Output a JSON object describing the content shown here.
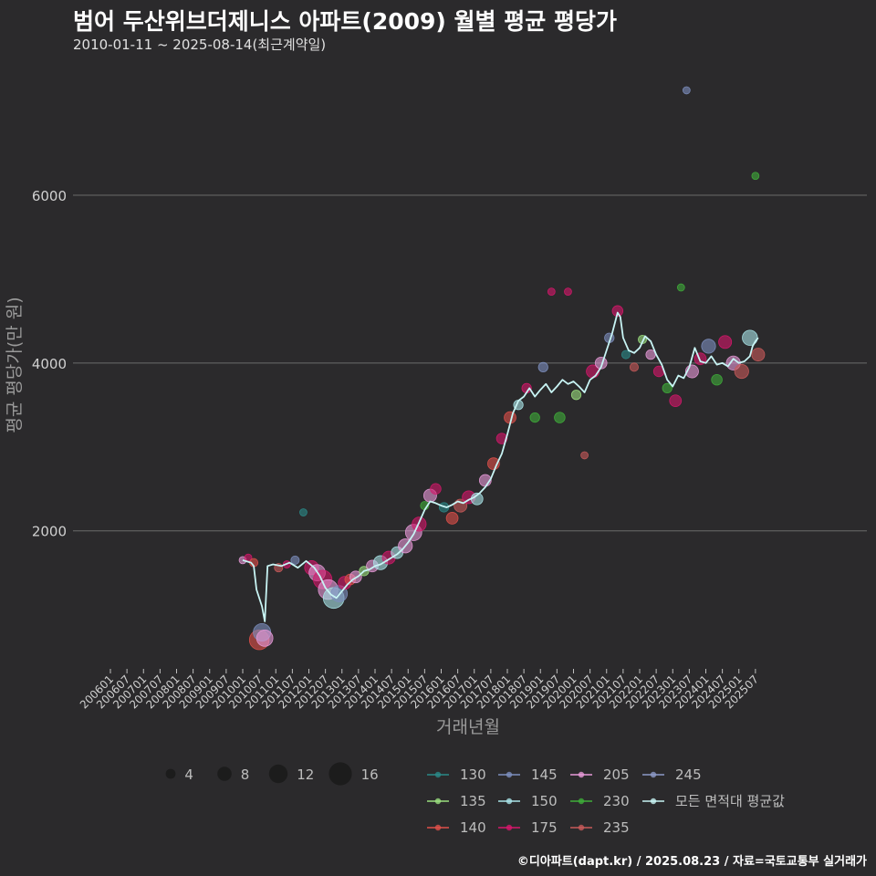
{
  "header": {
    "title": "범어 두산위브더제니스 아파트(2009) 월별 평균 평당가",
    "subtitle": "2010-01-11 ~ 2025-08-14(최근계약일)"
  },
  "caption": "©디아파트(dapt.kr) / 2025.08.23 / 자료=국토교통부 실거래가",
  "colors": {
    "background": "#2b2a2c",
    "grid": "#5a5a5a",
    "avg_line": "#c8f4f4",
    "series": {
      "130": "#2a8a88",
      "135": "#9be07f",
      "140": "#e0504a",
      "145": "#7d8fbf",
      "150": "#a9e4e8",
      "175": "#d6176b",
      "205": "#e79ad8",
      "230": "#3fae3a",
      "235": "#c85a5a",
      "245": "#8d9ac8"
    }
  },
  "chart_data": {
    "type": "scatter",
    "title": "범어 두산위브더제니스 아파트(2009) 월별 평균 평당가",
    "xlabel": "거래년월",
    "ylabel": "평균 평당가(만 원)",
    "ylim": [
      0,
      7500
    ],
    "yticks": [
      2000,
      4000,
      6000
    ],
    "grid": true,
    "x_tick_labels": [
      "200601",
      "200607",
      "200701",
      "200707",
      "200801",
      "200807",
      "200901",
      "200907",
      "201001",
      "201007",
      "201101",
      "201107",
      "201201",
      "201207",
      "201301",
      "201307",
      "201401",
      "201407",
      "201501",
      "201507",
      "201601",
      "201607",
      "201701",
      "201707",
      "201801",
      "201807",
      "201901",
      "201907",
      "202001",
      "202007",
      "202101",
      "202107",
      "202201",
      "202207",
      "202301",
      "202307",
      "202401",
      "202407",
      "202501",
      "202507"
    ],
    "size_legend": [
      {
        "size": 4,
        "label": "4"
      },
      {
        "size": 8,
        "label": "8"
      },
      {
        "size": 12,
        "label": "12"
      },
      {
        "size": 16,
        "label": "16"
      }
    ],
    "color_legend": [
      {
        "key": "130",
        "label": "130"
      },
      {
        "key": "135",
        "label": "135"
      },
      {
        "key": "140",
        "label": "140"
      },
      {
        "key": "145",
        "label": "145"
      },
      {
        "key": "150",
        "label": "150"
      },
      {
        "key": "175",
        "label": "175"
      },
      {
        "key": "205",
        "label": "205"
      },
      {
        "key": "230",
        "label": "230"
      },
      {
        "key": "235",
        "label": "235"
      },
      {
        "key": "245",
        "label": "245"
      },
      {
        "key": "avg",
        "label": "모든 면적대 평균값"
      }
    ],
    "average_series": {
      "name": "모든 면적대 평균값",
      "points": [
        [
          "2010-01",
          1650
        ],
        [
          "2010-04",
          1620
        ],
        [
          "2010-05",
          1580
        ],
        [
          "2010-06",
          1300
        ],
        [
          "2010-08",
          1100
        ],
        [
          "2010-09",
          920
        ],
        [
          "2010-10",
          1580
        ],
        [
          "2010-12",
          1600
        ],
        [
          "2011-03",
          1580
        ],
        [
          "2011-06",
          1620
        ],
        [
          "2011-09",
          1560
        ],
        [
          "2011-12",
          1640
        ],
        [
          "2012-03",
          1560
        ],
        [
          "2012-05",
          1460
        ],
        [
          "2012-07",
          1320
        ],
        [
          "2012-09",
          1240
        ],
        [
          "2012-11",
          1200
        ],
        [
          "2013-01",
          1280
        ],
        [
          "2013-03",
          1360
        ],
        [
          "2013-05",
          1420
        ],
        [
          "2013-07",
          1460
        ],
        [
          "2013-09",
          1520
        ],
        [
          "2013-11",
          1540
        ],
        [
          "2014-01",
          1580
        ],
        [
          "2014-03",
          1600
        ],
        [
          "2014-05",
          1640
        ],
        [
          "2014-07",
          1680
        ],
        [
          "2014-09",
          1720
        ],
        [
          "2014-11",
          1780
        ],
        [
          "2015-01",
          1860
        ],
        [
          "2015-03",
          1960
        ],
        [
          "2015-05",
          2100
        ],
        [
          "2015-07",
          2250
        ],
        [
          "2015-09",
          2350
        ],
        [
          "2015-11",
          2330
        ],
        [
          "2016-01",
          2300
        ],
        [
          "2016-03",
          2280
        ],
        [
          "2016-05",
          2310
        ],
        [
          "2016-07",
          2350
        ],
        [
          "2016-09",
          2330
        ],
        [
          "2016-11",
          2370
        ],
        [
          "2017-01",
          2400
        ],
        [
          "2017-03",
          2450
        ],
        [
          "2017-05",
          2520
        ],
        [
          "2017-07",
          2620
        ],
        [
          "2017-09",
          2780
        ],
        [
          "2017-11",
          2920
        ],
        [
          "2018-01",
          3150
        ],
        [
          "2018-03",
          3400
        ],
        [
          "2018-05",
          3550
        ],
        [
          "2018-07",
          3600
        ],
        [
          "2018-09",
          3700
        ],
        [
          "2018-11",
          3600
        ],
        [
          "2019-01",
          3680
        ],
        [
          "2019-03",
          3750
        ],
        [
          "2019-05",
          3650
        ],
        [
          "2019-07",
          3720
        ],
        [
          "2019-09",
          3800
        ],
        [
          "2019-11",
          3750
        ],
        [
          "2020-01",
          3780
        ],
        [
          "2020-03",
          3720
        ],
        [
          "2020-05",
          3650
        ],
        [
          "2020-07",
          3800
        ],
        [
          "2020-09",
          3850
        ],
        [
          "2020-11",
          3950
        ],
        [
          "2021-01",
          4150
        ],
        [
          "2021-03",
          4350
        ],
        [
          "2021-05",
          4600
        ],
        [
          "2021-06",
          4550
        ],
        [
          "2021-07",
          4300
        ],
        [
          "2021-09",
          4150
        ],
        [
          "2021-11",
          4120
        ],
        [
          "2022-01",
          4180
        ],
        [
          "2022-03",
          4320
        ],
        [
          "2022-05",
          4260
        ],
        [
          "2022-07",
          4100
        ],
        [
          "2022-09",
          3980
        ],
        [
          "2022-11",
          3800
        ],
        [
          "2023-01",
          3720
        ],
        [
          "2023-03",
          3850
        ],
        [
          "2023-05",
          3820
        ],
        [
          "2023-07",
          3950
        ],
        [
          "2023-09",
          4180
        ],
        [
          "2023-11",
          4020
        ],
        [
          "2024-01",
          4000
        ],
        [
          "2024-03",
          4080
        ],
        [
          "2024-05",
          3980
        ],
        [
          "2024-07",
          4000
        ],
        [
          "2024-09",
          3960
        ],
        [
          "2024-11",
          4050
        ],
        [
          "2025-01",
          4000
        ],
        [
          "2025-03",
          4020
        ],
        [
          "2025-05",
          4080
        ],
        [
          "2025-06",
          4200
        ],
        [
          "2025-07",
          4260
        ],
        [
          "2025-08",
          4300
        ]
      ]
    },
    "scatter_points": [
      [
        "2010-01",
        "205",
        1650,
        4
      ],
      [
        "2010-03",
        "175",
        1680,
        4
      ],
      [
        "2010-05",
        "140",
        1620,
        5
      ],
      [
        "2010-07",
        "140",
        700,
        15
      ],
      [
        "2010-08",
        "145",
        790,
        13
      ],
      [
        "2010-09",
        "205",
        720,
        12
      ],
      [
        "2011-02",
        "235",
        1560,
        5
      ],
      [
        "2011-05",
        "175",
        1600,
        4
      ],
      [
        "2011-08",
        "145",
        1650,
        5
      ],
      [
        "2011-11",
        "130",
        2220,
        4
      ],
      [
        "2012-02",
        "175",
        1560,
        10
      ],
      [
        "2012-04",
        "205",
        1500,
        12
      ],
      [
        "2012-06",
        "175",
        1420,
        14
      ],
      [
        "2012-08",
        "205",
        1300,
        15
      ],
      [
        "2012-10",
        "150",
        1200,
        16
      ],
      [
        "2012-12",
        "145",
        1250,
        12
      ],
      [
        "2013-02",
        "175",
        1380,
        9
      ],
      [
        "2013-04",
        "140",
        1420,
        7
      ],
      [
        "2013-06",
        "205",
        1450,
        8
      ],
      [
        "2013-09",
        "135",
        1520,
        6
      ],
      [
        "2013-12",
        "205",
        1580,
        8
      ],
      [
        "2014-03",
        "150",
        1620,
        10
      ],
      [
        "2014-06",
        "175",
        1680,
        9
      ],
      [
        "2014-09",
        "150",
        1740,
        8
      ],
      [
        "2014-12",
        "205",
        1820,
        10
      ],
      [
        "2015-03",
        "205",
        1980,
        12
      ],
      [
        "2015-05",
        "175",
        2080,
        10
      ],
      [
        "2015-07",
        "230",
        2300,
        5
      ],
      [
        "2015-09",
        "205",
        2420,
        9
      ],
      [
        "2015-11",
        "175",
        2500,
        7
      ],
      [
        "2016-02",
        "130",
        2280,
        6
      ],
      [
        "2016-05",
        "140",
        2150,
        8
      ],
      [
        "2016-08",
        "235",
        2300,
        9
      ],
      [
        "2016-11",
        "175",
        2400,
        9
      ],
      [
        "2017-02",
        "150",
        2380,
        8
      ],
      [
        "2017-05",
        "205",
        2600,
        8
      ],
      [
        "2017-08",
        "140",
        2800,
        8
      ],
      [
        "2017-11",
        "175",
        3100,
        7
      ],
      [
        "2018-02",
        "140",
        3350,
        8
      ],
      [
        "2018-05",
        "150",
        3500,
        6
      ],
      [
        "2018-08",
        "175",
        3700,
        6
      ],
      [
        "2018-11",
        "230",
        3350,
        6
      ],
      [
        "2019-02",
        "145",
        3950,
        6
      ],
      [
        "2019-05",
        "175",
        4850,
        4
      ],
      [
        "2019-08",
        "230",
        3350,
        7
      ],
      [
        "2019-11",
        "175",
        4850,
        4
      ],
      [
        "2020-02",
        "135",
        3620,
        6
      ],
      [
        "2020-05",
        "235",
        2900,
        4
      ],
      [
        "2020-08",
        "175",
        3900,
        9
      ],
      [
        "2020-11",
        "205",
        4000,
        8
      ],
      [
        "2021-02",
        "145",
        4300,
        6
      ],
      [
        "2021-05",
        "175",
        4620,
        7
      ],
      [
        "2021-08",
        "130",
        4100,
        5
      ],
      [
        "2021-11",
        "235",
        3950,
        5
      ],
      [
        "2022-02",
        "135",
        4280,
        5
      ],
      [
        "2022-05",
        "205",
        4100,
        6
      ],
      [
        "2022-08",
        "175",
        3900,
        7
      ],
      [
        "2022-11",
        "230",
        3700,
        6
      ],
      [
        "2023-02",
        "175",
        3550,
        8
      ],
      [
        "2023-04",
        "230",
        4900,
        4
      ],
      [
        "2023-06",
        "145",
        7250,
        4
      ],
      [
        "2023-08",
        "205",
        3900,
        9
      ],
      [
        "2023-11",
        "175",
        4050,
        8
      ],
      [
        "2024-02",
        "145",
        4200,
        10
      ],
      [
        "2024-05",
        "230",
        3800,
        7
      ],
      [
        "2024-08",
        "175",
        4250,
        9
      ],
      [
        "2024-11",
        "205",
        4000,
        10
      ],
      [
        "2025-02",
        "235",
        3900,
        10
      ],
      [
        "2025-05",
        "150",
        4300,
        11
      ],
      [
        "2025-07",
        "230",
        6230,
        4
      ],
      [
        "2025-08",
        "235",
        4100,
        9
      ]
    ]
  }
}
